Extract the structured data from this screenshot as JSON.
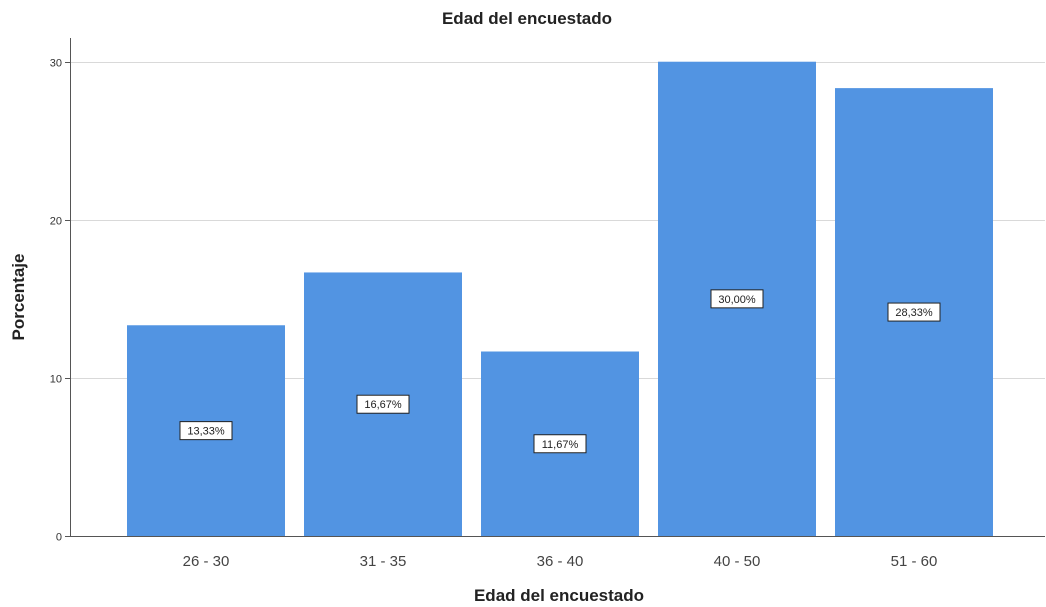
{
  "chart_data": {
    "type": "bar",
    "title": "Edad del encuestado",
    "xlabel": "Edad del encuestado",
    "ylabel": "Porcentaje",
    "categories": [
      "26 - 30",
      "31 - 35",
      "36 - 40",
      "40 - 50",
      "51 - 60"
    ],
    "values": [
      13.33,
      16.67,
      11.67,
      30.0,
      28.33
    ],
    "data_labels": [
      "13,33%",
      "16,67%",
      "11,67%",
      "30,00%",
      "28,33%"
    ],
    "ylim": [
      0,
      31.5
    ],
    "yticks": [
      0,
      10,
      20,
      30
    ],
    "grid": true,
    "bar_color": "#5294e2",
    "grid_color": "#d9d9d9"
  }
}
